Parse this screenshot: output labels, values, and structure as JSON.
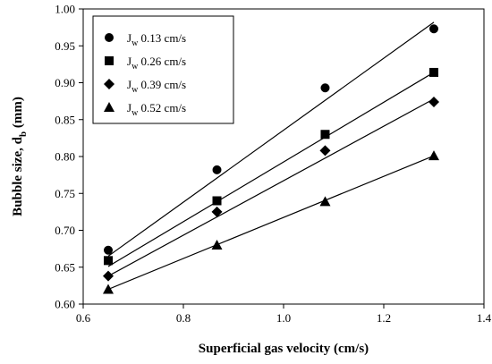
{
  "chart_data": {
    "type": "scatter",
    "xlabel": "Superficial gas velocity (cm/s)",
    "ylabel_main": "Bubble size, d",
    "ylabel_sub": "b",
    "ylabel_unit": " (mm)",
    "xlim": [
      0.6,
      1.4
    ],
    "ylim": [
      0.6,
      1.0
    ],
    "xticks": [
      "0.6",
      "0.8",
      "1.0",
      "1.2",
      "1.4"
    ],
    "yticks": [
      "0.60",
      "0.65",
      "0.70",
      "0.75",
      "0.80",
      "0.85",
      "0.90",
      "0.95",
      "1.00"
    ],
    "legend_position": "top-left",
    "grid": false,
    "series": [
      {
        "name": "Jw 0.13 cm/s",
        "legend_main": "J",
        "legend_sub": "w",
        "legend_rest": " 0.13 cm/s",
        "marker": "circle",
        "x": [
          0.65,
          0.867,
          1.083,
          1.3
        ],
        "y": [
          0.673,
          0.782,
          0.893,
          0.973
        ],
        "fit": [
          [
            0.65,
            0.665
          ],
          [
            1.3,
            0.982
          ]
        ]
      },
      {
        "name": "Jw 0.26 cm/s",
        "legend_main": "J",
        "legend_sub": "w",
        "legend_rest": " 0.26 cm/s",
        "marker": "square",
        "x": [
          0.65,
          0.867,
          1.083,
          1.3
        ],
        "y": [
          0.659,
          0.74,
          0.83,
          0.914
        ],
        "fit": [
          [
            0.65,
            0.651
          ],
          [
            1.3,
            0.914
          ]
        ]
      },
      {
        "name": "Jw 0.39 cm/s",
        "legend_main": "J",
        "legend_sub": "w",
        "legend_rest": " 0.39 cm/s",
        "marker": "diamond",
        "x": [
          0.65,
          0.867,
          1.083,
          1.3
        ],
        "y": [
          0.638,
          0.725,
          0.808,
          0.874
        ],
        "fit": [
          [
            0.65,
            0.638
          ],
          [
            1.3,
            0.878
          ]
        ]
      },
      {
        "name": "Jw 0.52 cm/s",
        "legend_main": "J",
        "legend_sub": "w",
        "legend_rest": " 0.52 cm/s",
        "marker": "triangle",
        "x": [
          0.65,
          0.867,
          1.083,
          1.3
        ],
        "y": [
          0.62,
          0.68,
          0.739,
          0.801
        ],
        "fit": [
          [
            0.65,
            0.62
          ],
          [
            1.3,
            0.801
          ]
        ]
      }
    ]
  }
}
